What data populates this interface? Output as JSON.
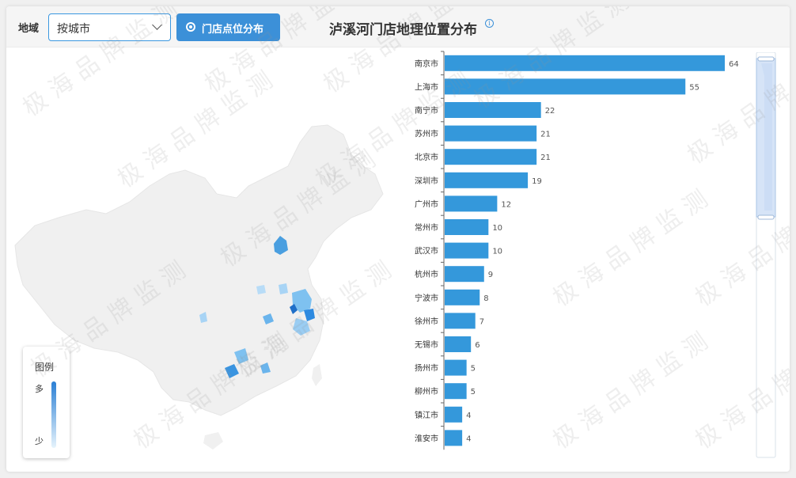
{
  "toolbar": {
    "region_label": "地域",
    "region_select_value": "按城市",
    "store_button_label": "门店点位分布"
  },
  "chart_title": "泸溪河门店地理位置分布",
  "info_icon_glyph": "i",
  "legend": {
    "title": "图例",
    "more": "多",
    "less": "少"
  },
  "watermark_text": "极海品牌监测",
  "colors": {
    "accent": "#3a97e0",
    "bar": "#3498db",
    "button": "#3c90d8"
  },
  "chart_data": [
    {
      "type": "bar",
      "orientation": "horizontal",
      "categories": [
        "南京市",
        "上海市",
        "南宁市",
        "苏州市",
        "北京市",
        "深圳市",
        "广州市",
        "常州市",
        "武汉市",
        "杭州市",
        "宁波市",
        "徐州市",
        "无锡市",
        "扬州市",
        "柳州市",
        "镇江市",
        "淮安市"
      ],
      "values": [
        64,
        55,
        22,
        21,
        21,
        19,
        12,
        10,
        10,
        9,
        8,
        7,
        6,
        5,
        5,
        4,
        4
      ],
      "xlim": [
        0,
        70
      ],
      "grid": false,
      "data_labels": true
    },
    {
      "type": "heatmap",
      "map": "china",
      "highlighted_regions": [
        "北京市",
        "南京市",
        "上海市",
        "苏州市",
        "杭州市",
        "南宁市",
        "深圳市",
        "广州市",
        "武汉市"
      ]
    }
  ]
}
